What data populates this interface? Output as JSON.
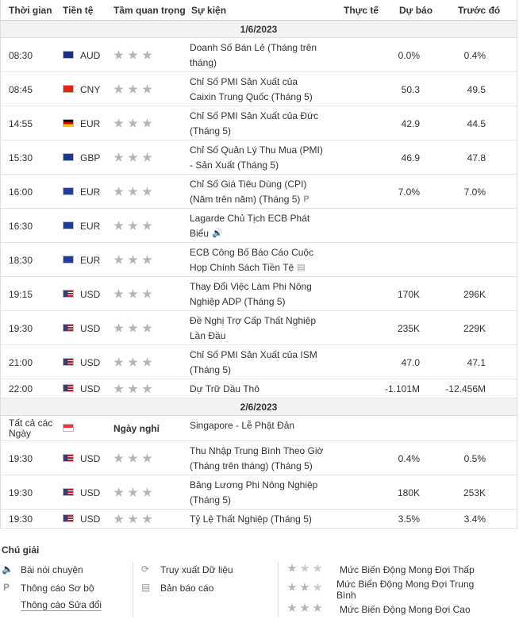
{
  "headers": {
    "time": "Thời gian",
    "currency": "Tiền tệ",
    "importance": "Tầm quan trọng",
    "event": "Sự kiện",
    "actual": "Thực tế",
    "forecast": "Dự báo",
    "previous": "Trước đó"
  },
  "days": [
    {
      "date": "1/6/2023",
      "rows": [
        {
          "time": "08:30",
          "flag": "australia-flag",
          "cur": "AUD",
          "event": "Doanh Số Bán Lẻ (Tháng trên tháng)",
          "actual": "",
          "forecast": "0.0%",
          "previous": "0.4%",
          "icon": "",
          "stars": 3
        },
        {
          "time": "08:45",
          "flag": "china-flag",
          "cur": "CNY",
          "event": "Chỉ Số PMI Sản Xuất của Caixin Trung Quốc (Tháng 5)",
          "actual": "",
          "forecast": "50.3",
          "previous": "49.5",
          "icon": "",
          "stars": 3
        },
        {
          "time": "14:55",
          "flag": "germany-flag",
          "cur": "EUR",
          "event": "Chỉ Số PMI Sản Xuất của Đức (Tháng 5)",
          "actual": "",
          "forecast": "42.9",
          "previous": "44.5",
          "icon": "",
          "stars": 3
        },
        {
          "time": "15:30",
          "flag": "uk-flag",
          "cur": "GBP",
          "event": "Chỉ Số Quản Lý Thu Mua (PMI) - Sản Xuất (Tháng 5)",
          "actual": "",
          "forecast": "46.9",
          "previous": "47.8",
          "icon": "",
          "stars": 3
        },
        {
          "time": "16:00",
          "flag": "eu-flag",
          "cur": "EUR",
          "event": "Chỉ Số Giá Tiêu Dùng (CPI) (Năm trên năm) (Tháng 5)",
          "actual": "",
          "forecast": "7.0%",
          "previous": "7.0%",
          "icon": "P",
          "stars": 3
        },
        {
          "time": "16:30",
          "flag": "eu-flag",
          "cur": "EUR",
          "event": "Lagarde Chủ Tịch ECB Phát Biểu",
          "actual": "",
          "forecast": "",
          "previous": "",
          "icon": "🔊",
          "stars": 3
        },
        {
          "time": "18:30",
          "flag": "eu-flag",
          "cur": "EUR",
          "event": "ECB Công Bố Báo Cáo Cuộc Họp Chính Sách Tiền Tệ",
          "actual": "",
          "forecast": "",
          "previous": "",
          "icon": "▤",
          "stars": 3
        },
        {
          "time": "19:15",
          "flag": "us-flag",
          "cur": "USD",
          "event": "Thay Đổi Việc Làm Phi Nông Nghiệp ADP (Tháng 5)",
          "actual": "",
          "forecast": "170K",
          "previous": "296K",
          "icon": "",
          "stars": 3
        },
        {
          "time": "19:30",
          "flag": "us-flag",
          "cur": "USD",
          "event": "Đề Nghị Trợ Cấp Thất Nghiệp Lần Đầu",
          "actual": "",
          "forecast": "235K",
          "previous": "229K",
          "icon": "",
          "stars": 3
        },
        {
          "time": "21:00",
          "flag": "us-flag",
          "cur": "USD",
          "event": "Chỉ Số PMI Sản Xuất của ISM (Tháng 5)",
          "actual": "",
          "forecast": "47.0",
          "previous": "47.1",
          "icon": "",
          "stars": 3
        },
        {
          "time": "22:00",
          "flag": "us-flag",
          "cur": "USD",
          "event": "Dự Trữ Dầu Thô",
          "actual": "",
          "forecast": "-1.101M",
          "previous": "-12.456M",
          "icon": "",
          "stars": 3
        }
      ]
    },
    {
      "date": "2/6/2023",
      "rows": [
        {
          "time": "Tất cả các Ngày",
          "flag": "singapore-flag",
          "cur": "",
          "holiday": "Ngày nghỉ",
          "event": "Singapore - Lễ Phật Đản",
          "actual": "",
          "forecast": "",
          "previous": "",
          "icon": "",
          "stars": 0
        },
        {
          "time": "19:30",
          "flag": "us-flag",
          "cur": "USD",
          "event": "Thu Nhập Trung Bình Theo Giờ (Tháng trên tháng) (Tháng 5)",
          "actual": "",
          "forecast": "0.4%",
          "previous": "0.5%",
          "icon": "",
          "stars": 3
        },
        {
          "time": "19:30",
          "flag": "us-flag",
          "cur": "USD",
          "event": "Bảng Lương Phi Nông Nghiệp (Tháng 5)",
          "actual": "",
          "forecast": "180K",
          "previous": "253K",
          "icon": "",
          "stars": 3
        },
        {
          "time": "19:30",
          "flag": "us-flag",
          "cur": "USD",
          "event": "Tỷ Lệ Thất Nghiệp (Tháng 5)",
          "actual": "",
          "forecast": "3.5%",
          "previous": "3.4%",
          "icon": "",
          "stars": 3
        }
      ]
    }
  ],
  "legend": {
    "title": "Chú giải",
    "speech": "Bài nói chuyện",
    "prelim": "Thông cáo Sơ bộ",
    "revised": "Thông cáo Sửa đổi",
    "retrieval": "Truy xuất Dữ liệu",
    "report": "Bản báo cáo",
    "low": "Mức Biến Động Mong Đợi Thấp",
    "medium": "Mức Biến Động Mong Đợi Trung Bình",
    "high": "Mức Biến Động Mong Đợi Cao"
  },
  "flags": {
    "australia-flag": "#1b2f8a",
    "china-flag": "#de2910",
    "germany-flag": "#dd0000",
    "uk-flag": "#1d3a8a",
    "eu-flag": "#1f3d99",
    "us-flag": "#3c3b6e",
    "singapore-flag": "#ef3340"
  }
}
